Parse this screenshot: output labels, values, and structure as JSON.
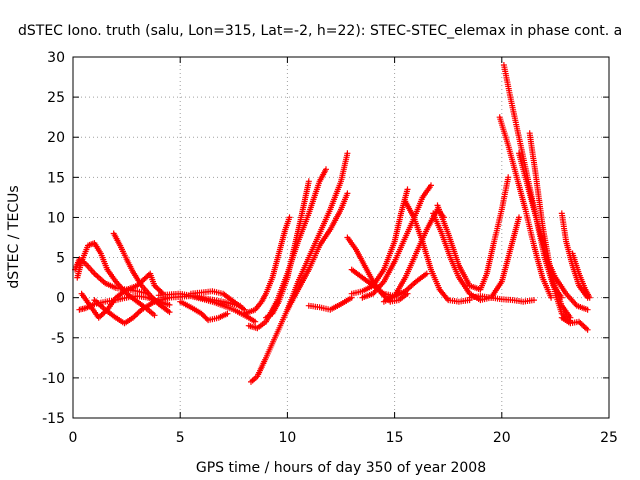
{
  "chart_data": {
    "type": "scatter",
    "title": "dSTEC Iono. truth (salu, Lon=315, Lat=-2, h=22): STEC-STEC_elemax in phase cont. a",
    "xlabel": "GPS time / hours of day 350 of year 2008",
    "ylabel": "dSTEC  / TECUs",
    "xlim": [
      0,
      25
    ],
    "ylim": [
      -15,
      30
    ],
    "xticks": [
      0,
      5,
      10,
      15,
      20,
      25
    ],
    "yticks": [
      -15,
      -10,
      -5,
      0,
      5,
      10,
      15,
      20,
      25,
      30
    ],
    "grid": true,
    "marker": "+",
    "color": "#ff0000",
    "series": [
      {
        "points": [
          [
            0.1,
            3.5
          ],
          [
            0.3,
            4.8
          ],
          [
            0.6,
            4.2
          ],
          [
            1.0,
            3.0
          ],
          [
            1.5,
            1.8
          ],
          [
            2.0,
            1.2
          ],
          [
            2.5,
            1.0
          ],
          [
            3.0,
            0.8
          ],
          [
            3.5,
            0.5
          ]
        ]
      },
      {
        "points": [
          [
            0.2,
            2.5
          ],
          [
            0.4,
            4.5
          ],
          [
            0.7,
            6.5
          ],
          [
            1.0,
            6.8
          ],
          [
            1.3,
            5.5
          ],
          [
            1.6,
            3.5
          ],
          [
            2.0,
            2.0
          ],
          [
            2.5,
            0.5
          ],
          [
            3.0,
            -0.5
          ],
          [
            3.5,
            -1.5
          ],
          [
            3.8,
            -2.2
          ]
        ]
      },
      {
        "points": [
          [
            0.3,
            -1.5
          ],
          [
            0.6,
            -1.3
          ],
          [
            1.0,
            -0.8
          ],
          [
            1.5,
            -0.5
          ],
          [
            2.0,
            -0.3
          ],
          [
            2.5,
            0.0
          ],
          [
            3.0,
            0.2
          ],
          [
            3.5,
            0.0
          ],
          [
            4.0,
            -0.5
          ],
          [
            4.5,
            -0.9
          ]
        ]
      },
      {
        "points": [
          [
            0.4,
            0.5
          ],
          [
            0.8,
            -1.0
          ],
          [
            1.2,
            -2.5
          ],
          [
            1.6,
            -1.5
          ],
          [
            2.0,
            0.0
          ],
          [
            2.5,
            1.0
          ],
          [
            3.0,
            1.5
          ],
          [
            3.4,
            2.5
          ],
          [
            3.6,
            3.0
          ],
          [
            3.8,
            1.5
          ],
          [
            4.2,
            0.5
          ]
        ]
      },
      {
        "points": [
          [
            1.9,
            8.0
          ],
          [
            2.2,
            6.5
          ],
          [
            2.5,
            4.8
          ],
          [
            2.8,
            3.2
          ],
          [
            3.2,
            1.5
          ],
          [
            3.6,
            0.3
          ],
          [
            4.0,
            -0.8
          ],
          [
            4.5,
            -1.8
          ]
        ]
      },
      {
        "points": [
          [
            1.0,
            -0.3
          ],
          [
            1.5,
            -1.5
          ],
          [
            2.0,
            -2.5
          ],
          [
            2.4,
            -3.2
          ],
          [
            2.8,
            -2.5
          ],
          [
            3.2,
            -1.5
          ],
          [
            3.8,
            -0.5
          ]
        ]
      },
      {
        "points": [
          [
            3.8,
            -0.5
          ],
          [
            4.5,
            0.0
          ],
          [
            5.5,
            0.2
          ],
          [
            6.5,
            -0.5
          ],
          [
            7.5,
            -1.5
          ],
          [
            8.2,
            -2.5
          ],
          [
            8.5,
            -3.0
          ]
        ]
      },
      {
        "points": [
          [
            4.0,
            0.3
          ],
          [
            5.0,
            0.5
          ],
          [
            6.0,
            0.0
          ],
          [
            7.0,
            -0.5
          ],
          [
            7.8,
            -1.0
          ]
        ]
      },
      {
        "points": [
          [
            5.0,
            -0.5
          ],
          [
            5.5,
            -1.2
          ],
          [
            6.0,
            -2.0
          ],
          [
            6.3,
            -2.8
          ],
          [
            6.8,
            -2.5
          ],
          [
            7.2,
            -2.0
          ]
        ]
      },
      {
        "points": [
          [
            5.5,
            0.5
          ],
          [
            6.5,
            0.8
          ],
          [
            7.0,
            0.5
          ],
          [
            7.5,
            -0.5
          ],
          [
            8.0,
            -1.5
          ]
        ]
      },
      {
        "points": [
          [
            8.2,
            -3.5
          ],
          [
            8.6,
            -3.8
          ],
          [
            9.0,
            -3.0
          ],
          [
            9.5,
            -0.5
          ],
          [
            10.0,
            3.0
          ],
          [
            10.5,
            7.0
          ],
          [
            11.0,
            10.5
          ],
          [
            11.5,
            14.5
          ],
          [
            11.8,
            16.0
          ]
        ]
      },
      {
        "points": [
          [
            8.3,
            -10.5
          ],
          [
            8.6,
            -9.8
          ],
          [
            9.0,
            -7.5
          ],
          [
            9.5,
            -4.5
          ],
          [
            10.0,
            -1.5
          ],
          [
            10.5,
            2.0
          ],
          [
            11.0,
            5.0
          ],
          [
            11.5,
            8.0
          ],
          [
            12.0,
            11.0
          ],
          [
            12.5,
            14.5
          ],
          [
            12.8,
            18.0
          ]
        ]
      },
      {
        "points": [
          [
            9.0,
            -2.5
          ],
          [
            9.3,
            -2.0
          ],
          [
            9.6,
            -0.5
          ],
          [
            10.0,
            2.5
          ],
          [
            10.3,
            6.0
          ],
          [
            10.6,
            9.5
          ],
          [
            10.8,
            12.0
          ],
          [
            11.0,
            14.5
          ]
        ]
      },
      {
        "points": [
          [
            8.0,
            -2.0
          ],
          [
            8.5,
            -1.5
          ],
          [
            8.8,
            -0.5
          ],
          [
            9.0,
            0.5
          ],
          [
            9.3,
            2.5
          ],
          [
            9.6,
            5.5
          ],
          [
            9.9,
            8.5
          ],
          [
            10.1,
            10.0
          ]
        ]
      },
      {
        "points": [
          [
            10.0,
            -1.5
          ],
          [
            10.5,
            1.0
          ],
          [
            11.0,
            3.5
          ],
          [
            11.5,
            6.5
          ],
          [
            12.0,
            8.5
          ],
          [
            12.5,
            11.0
          ],
          [
            12.8,
            13.0
          ]
        ]
      },
      {
        "points": [
          [
            11.0,
            -1.0
          ],
          [
            11.5,
            -1.2
          ],
          [
            12.0,
            -1.5
          ],
          [
            12.5,
            -0.8
          ],
          [
            13.0,
            0.0
          ]
        ]
      },
      {
        "points": [
          [
            12.8,
            7.5
          ],
          [
            13.2,
            6.0
          ],
          [
            13.6,
            4.0
          ],
          [
            14.0,
            2.0
          ],
          [
            14.4,
            0.5
          ],
          [
            14.8,
            -0.5
          ],
          [
            15.2,
            -0.3
          ],
          [
            15.6,
            0.5
          ]
        ]
      },
      {
        "points": [
          [
            13.0,
            3.5
          ],
          [
            13.5,
            2.5
          ],
          [
            14.0,
            1.5
          ],
          [
            14.5,
            0.5
          ],
          [
            15.0,
            0.2
          ],
          [
            15.5,
            0.8
          ],
          [
            16.0,
            2.0
          ],
          [
            16.5,
            3.0
          ]
        ]
      },
      {
        "points": [
          [
            13.0,
            0.5
          ],
          [
            13.5,
            0.8
          ],
          [
            14.0,
            1.5
          ],
          [
            14.5,
            3.5
          ],
          [
            15.0,
            7.0
          ],
          [
            15.3,
            10.5
          ],
          [
            15.6,
            13.5
          ]
        ]
      },
      {
        "points": [
          [
            13.5,
            0.0
          ],
          [
            14.0,
            0.5
          ],
          [
            14.5,
            2.0
          ],
          [
            15.0,
            4.5
          ],
          [
            15.5,
            7.5
          ],
          [
            16.0,
            10.5
          ],
          [
            16.3,
            12.5
          ],
          [
            16.7,
            14.0
          ]
        ]
      },
      {
        "points": [
          [
            15.5,
            12.0
          ],
          [
            15.9,
            10.0
          ],
          [
            16.3,
            7.0
          ],
          [
            16.7,
            3.5
          ],
          [
            17.1,
            1.0
          ],
          [
            17.5,
            -0.3
          ],
          [
            18.0,
            -0.5
          ],
          [
            18.5,
            -0.3
          ]
        ]
      },
      {
        "points": [
          [
            14.5,
            -0.5
          ],
          [
            15.0,
            0.2
          ],
          [
            15.5,
            2.5
          ],
          [
            16.0,
            5.5
          ],
          [
            16.5,
            8.5
          ],
          [
            17.0,
            11.0
          ],
          [
            17.3,
            10.0
          ]
        ]
      },
      {
        "points": [
          [
            16.8,
            10.5
          ],
          [
            17.2,
            8.0
          ],
          [
            17.6,
            5.0
          ],
          [
            18.0,
            2.5
          ],
          [
            18.5,
            0.5
          ],
          [
            19.0,
            -0.3
          ],
          [
            19.5,
            0.0
          ],
          [
            20.0,
            2.0
          ],
          [
            20.4,
            6.0
          ],
          [
            20.8,
            10.0
          ]
        ]
      },
      {
        "points": [
          [
            17.0,
            11.5
          ],
          [
            17.5,
            8.0
          ],
          [
            18.0,
            4.0
          ],
          [
            18.5,
            1.5
          ],
          [
            19.0,
            1.0
          ],
          [
            19.3,
            3.0
          ],
          [
            19.6,
            6.5
          ],
          [
            20.0,
            11.0
          ],
          [
            20.3,
            15.0
          ]
        ]
      },
      {
        "points": [
          [
            18.5,
            0.0
          ],
          [
            19.0,
            0.2
          ],
          [
            19.5,
            0.0
          ],
          [
            20.0,
            -0.2
          ],
          [
            20.5,
            -0.3
          ],
          [
            21.0,
            -0.5
          ],
          [
            21.5,
            -0.3
          ]
        ]
      },
      {
        "points": [
          [
            20.1,
            29.0
          ],
          [
            20.4,
            25.0
          ],
          [
            20.8,
            20.0
          ],
          [
            21.2,
            15.0
          ],
          [
            21.6,
            10.0
          ],
          [
            22.0,
            5.0
          ],
          [
            22.4,
            1.5
          ],
          [
            22.8,
            0.0
          ]
        ]
      },
      {
        "points": [
          [
            19.9,
            22.5
          ],
          [
            20.3,
            19.0
          ],
          [
            20.7,
            15.0
          ],
          [
            21.1,
            11.0
          ],
          [
            21.5,
            6.5
          ],
          [
            21.9,
            2.5
          ],
          [
            22.3,
            0.0
          ]
        ]
      },
      {
        "points": [
          [
            20.8,
            18.0
          ],
          [
            21.2,
            14.0
          ],
          [
            21.6,
            10.0
          ],
          [
            22.0,
            6.0
          ],
          [
            22.4,
            2.0
          ],
          [
            22.8,
            -1.0
          ],
          [
            23.2,
            -2.5
          ]
        ]
      },
      {
        "points": [
          [
            21.3,
            20.5
          ],
          [
            21.6,
            15.0
          ],
          [
            21.9,
            9.0
          ],
          [
            22.2,
            4.5
          ],
          [
            22.5,
            0.5
          ],
          [
            22.8,
            -2.0
          ],
          [
            23.2,
            -3.0
          ]
        ]
      },
      {
        "points": [
          [
            22.0,
            5.5
          ],
          [
            22.5,
            2.5
          ],
          [
            23.0,
            0.5
          ],
          [
            23.5,
            -1.0
          ],
          [
            24.0,
            -1.5
          ]
        ]
      },
      {
        "points": [
          [
            22.8,
            -2.5
          ],
          [
            23.2,
            -3.2
          ],
          [
            23.6,
            -3.0
          ],
          [
            24.0,
            -4.0
          ]
        ]
      },
      {
        "points": [
          [
            22.8,
            10.5
          ],
          [
            23.0,
            7.0
          ],
          [
            23.3,
            4.0
          ],
          [
            23.6,
            1.5
          ],
          [
            24.0,
            0.0
          ]
        ]
      },
      {
        "points": [
          [
            23.3,
            5.5
          ],
          [
            23.6,
            3.0
          ],
          [
            23.9,
            1.0
          ],
          [
            24.1,
            0.0
          ]
        ]
      }
    ]
  }
}
